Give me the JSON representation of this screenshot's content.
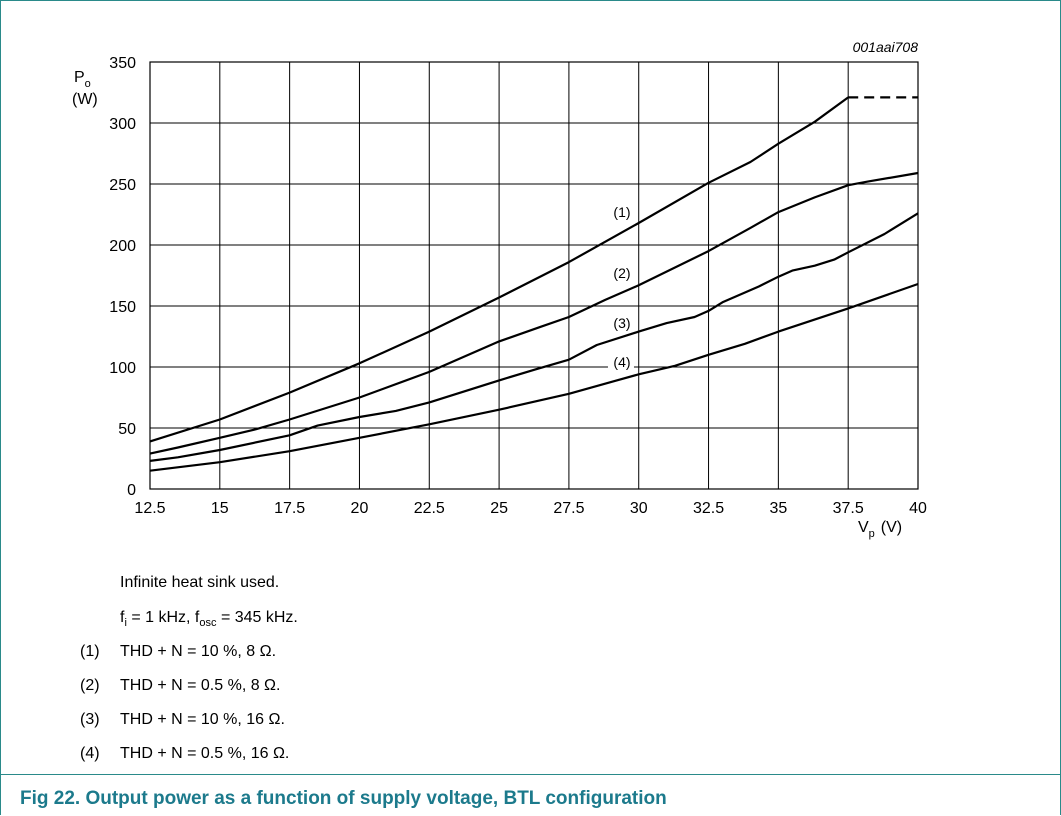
{
  "chart_data": {
    "type": "line",
    "figure_code": "001aai708",
    "ylabel_main": "P",
    "ylabel_sub": "o",
    "ylabel_unit": "(W)",
    "xlabel_main": "V",
    "xlabel_sub": "p",
    "xlabel_unit": "(V)",
    "xlim": [
      12.5,
      40
    ],
    "ylim": [
      0,
      350
    ],
    "x_ticks": [
      "12.5",
      "15",
      "17.5",
      "20",
      "22.5",
      "25",
      "27.5",
      "30",
      "32.5",
      "35",
      "37.5",
      "40"
    ],
    "y_ticks": [
      "0",
      "50",
      "100",
      "150",
      "200",
      "250",
      "300",
      "350"
    ],
    "grid": true,
    "series": [
      {
        "name": "(1)",
        "points": [
          [
            12.5,
            39
          ],
          [
            15,
            57
          ],
          [
            17.5,
            79
          ],
          [
            20,
            103
          ],
          [
            22.5,
            129
          ],
          [
            25,
            157
          ],
          [
            27.5,
            186
          ],
          [
            30,
            218
          ],
          [
            32.5,
            251
          ],
          [
            34,
            268
          ],
          [
            35,
            283
          ],
          [
            36.3,
            301
          ],
          [
            37.5,
            321
          ]
        ],
        "dashed_points": [
          [
            37.5,
            321
          ],
          [
            40,
            321
          ]
        ]
      },
      {
        "name": "(2)",
        "points": [
          [
            12.5,
            29
          ],
          [
            13.5,
            34
          ],
          [
            15,
            42
          ],
          [
            16.3,
            49
          ],
          [
            17.5,
            57
          ],
          [
            20,
            75
          ],
          [
            22.5,
            96
          ],
          [
            25,
            121
          ],
          [
            26.5,
            133
          ],
          [
            27.5,
            141
          ],
          [
            28.8,
            155
          ],
          [
            30,
            167
          ],
          [
            32.5,
            195
          ],
          [
            34,
            214
          ],
          [
            35,
            227
          ],
          [
            36.3,
            239
          ],
          [
            37.5,
            249
          ],
          [
            38.2,
            252
          ],
          [
            40,
            259
          ]
        ]
      },
      {
        "name": "(3)",
        "points": [
          [
            12.5,
            23
          ],
          [
            13.5,
            26
          ],
          [
            15,
            32
          ],
          [
            17.5,
            44
          ],
          [
            18.5,
            52
          ],
          [
            20,
            59
          ],
          [
            21.3,
            64
          ],
          [
            22.5,
            71
          ],
          [
            25,
            89
          ],
          [
            26.3,
            98
          ],
          [
            27.5,
            106
          ],
          [
            28.5,
            118
          ],
          [
            30,
            129
          ],
          [
            31,
            136
          ],
          [
            32,
            141
          ],
          [
            32.5,
            146
          ],
          [
            33,
            153
          ],
          [
            34.3,
            166
          ],
          [
            35,
            174
          ],
          [
            35.5,
            179
          ],
          [
            36.3,
            183
          ],
          [
            37,
            188
          ],
          [
            37.5,
            194
          ],
          [
            38.8,
            209
          ],
          [
            40,
            226
          ]
        ]
      },
      {
        "name": "(4)",
        "points": [
          [
            12.5,
            15
          ],
          [
            15,
            22
          ],
          [
            17.5,
            31
          ],
          [
            20,
            42
          ],
          [
            22.5,
            53
          ],
          [
            25,
            65
          ],
          [
            27.5,
            78
          ],
          [
            30,
            94
          ],
          [
            31.3,
            101
          ],
          [
            32.5,
            110
          ],
          [
            33.8,
            119
          ],
          [
            35,
            129
          ],
          [
            37.5,
            148
          ],
          [
            40,
            168
          ]
        ]
      }
    ],
    "series_label_positions": [
      {
        "label": "(1)",
        "x": 29.4,
        "y": 223
      },
      {
        "label": "(2)",
        "x": 29.4,
        "y": 173
      },
      {
        "label": "(3)",
        "x": 29.4,
        "y": 132
      },
      {
        "label": "(4)",
        "x": 29.4,
        "y": 100
      }
    ]
  },
  "notes": {
    "heat_sink": "Infinite heat sink used.",
    "freq_fi": "f",
    "freq_fi_sub": "i",
    "freq_mid": " = 1 kHz, f",
    "freq_osc_sub": "osc",
    "freq_end": " = 345 kHz.",
    "items": [
      {
        "num": "(1)",
        "text": "THD + N = 10 %, 8 Ω."
      },
      {
        "num": "(2)",
        "text": "THD + N = 0.5 %, 8 Ω."
      },
      {
        "num": "(3)",
        "text": "THD + N = 10 %, 16 Ω."
      },
      {
        "num": "(4)",
        "text": "THD + N = 0.5 %, 16 Ω."
      }
    ]
  },
  "caption": "Fig 22.   Output power as a function of supply voltage, BTL configuration"
}
